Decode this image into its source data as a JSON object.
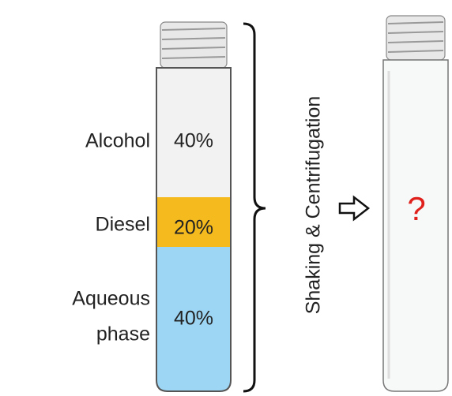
{
  "left_tube": {
    "layers": [
      {
        "label": [
          "Alcohol"
        ],
        "percent": "40%"
      },
      {
        "label": [
          "Diesel"
        ],
        "percent": "20%"
      },
      {
        "label": [
          "Aqueous",
          "phase"
        ],
        "percent": "40%"
      }
    ]
  },
  "process": "Shaking & Centrifugation",
  "right_tube": {
    "label": "?"
  }
}
